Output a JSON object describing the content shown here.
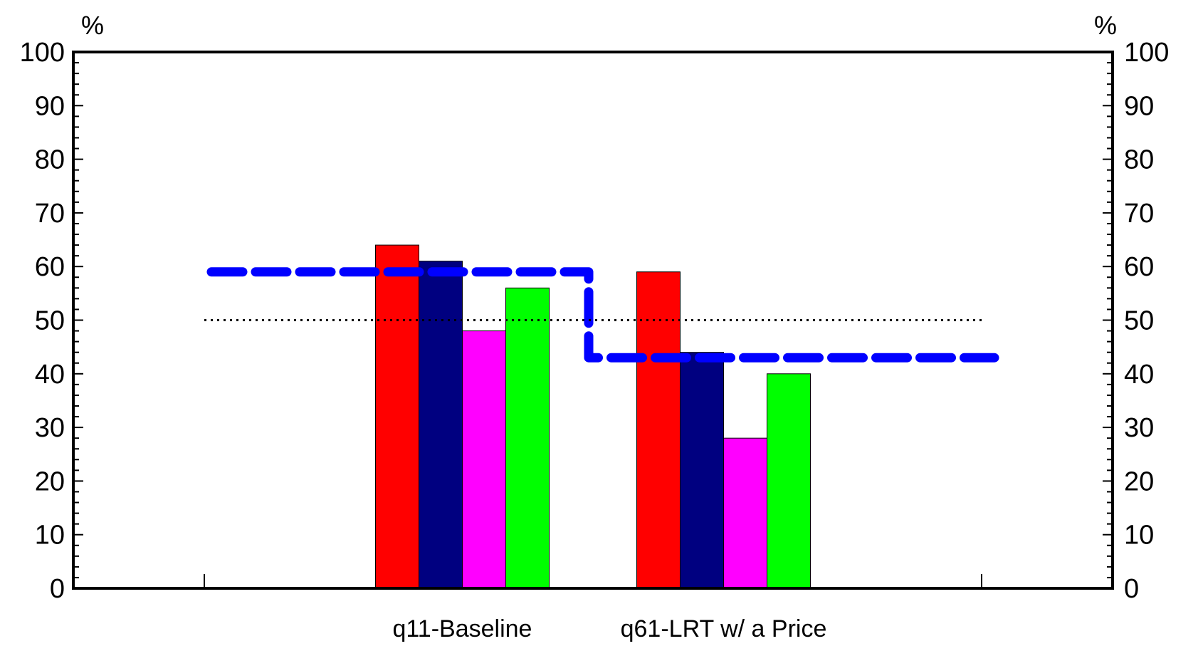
{
  "chart_data": {
    "type": "bar",
    "title": "",
    "xlabel": "",
    "ylabel": "%",
    "y2label": "%",
    "ylim": [
      0,
      100
    ],
    "yticks": [
      "0",
      "10",
      "20",
      "30",
      "40",
      "50",
      "60",
      "70",
      "80",
      "90",
      "100"
    ],
    "categories": [
      "q11-Baseline",
      "q61-LRT w/ a Price"
    ],
    "series": [
      {
        "color": "#ff0000",
        "values": [
          64,
          59
        ]
      },
      {
        "color": "#000080",
        "values": [
          61,
          44
        ]
      },
      {
        "color": "#ff00ff",
        "values": [
          48,
          28
        ]
      },
      {
        "color": "#00ff00",
        "values": [
          56,
          40
        ]
      }
    ],
    "lines": [
      {
        "style": "dashed",
        "color": "#0000ff",
        "values": [
          59,
          43
        ]
      },
      {
        "style": "dotted",
        "color": "#000000",
        "values": [
          50,
          50
        ]
      }
    ],
    "grid": false,
    "legend": "none"
  }
}
